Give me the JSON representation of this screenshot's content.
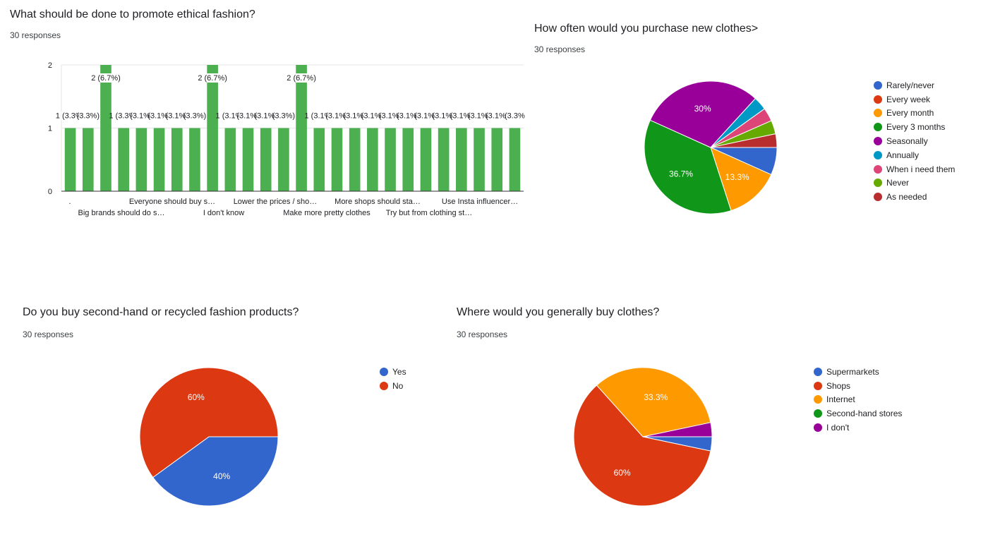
{
  "colors": {
    "blue": "#3366cc",
    "red": "#dc3912",
    "orange": "#ff9900",
    "green": "#109618",
    "purple": "#990099",
    "teal": "#0099c6",
    "pink": "#dd4477",
    "lime": "#66aa00",
    "darkred": "#b82e2e",
    "bar": "#4caf50"
  },
  "chart_data": [
    {
      "type": "bar",
      "title": "What should be done to promote ethical fashion?",
      "subtitle": "30 responses",
      "ylim": [
        0,
        2
      ],
      "yticks": [
        "0",
        "1",
        "2"
      ],
      "values": [
        1,
        1,
        2,
        1,
        1,
        1,
        1,
        1,
        2,
        1,
        1,
        1,
        1,
        2,
        1,
        1,
        1,
        1,
        1,
        1,
        1,
        1,
        1,
        1,
        1,
        1
      ],
      "bar_labels": [
        "1 (3.3%)",
        "(3.3%)",
        "2 (6.7%)",
        "1 (3.3%)",
        "(3.1%)",
        "(3.1%)",
        "(3.1%)",
        "(3.3%)",
        "2 (6.7%)",
        "1 (3.1%)",
        "(3.1%)",
        "(3.1%)",
        "(3.3%)",
        "2 (6.7%)",
        "1 (3.1%)",
        "(3.1%)",
        "(3.1%)",
        "(3.1%)",
        "(3.1%)",
        "(3.1%)",
        "(3.1%)",
        "(3.1%)",
        "(3.1%)",
        "(3.1%)",
        "(3.1%)",
        "(3.3%"
      ],
      "x_labels_row1": [
        ".",
        "Everyone should buy s…",
        "Lower the prices / sho…",
        "More shops should sta…",
        "Use Insta influencer…"
      ],
      "x_labels_row2": [
        "Big brands should do s…",
        "I don't know",
        "Make more pretty clothes",
        "Try but from clothing st…"
      ]
    },
    {
      "type": "pie",
      "title": "How often would you purchase new clothes>",
      "subtitle": "30 responses",
      "legend_position": "right",
      "slices": [
        {
          "label": "Rarely/never",
          "value": 6.7,
          "color": "#3366cc",
          "display": ""
        },
        {
          "label": "Every week",
          "value": 0,
          "color": "#dc3912",
          "display": ""
        },
        {
          "label": "Every month",
          "value": 13.3,
          "color": "#ff9900",
          "display": "13.3%"
        },
        {
          "label": "Every 3 months",
          "value": 36.7,
          "color": "#109618",
          "display": "36.7%"
        },
        {
          "label": "Seasonally",
          "value": 30,
          "color": "#990099",
          "display": "30%"
        },
        {
          "label": "Annually",
          "value": 3.3,
          "color": "#0099c6",
          "display": ""
        },
        {
          "label": "When i need them",
          "value": 3.3,
          "color": "#dd4477",
          "display": ""
        },
        {
          "label": "Never",
          "value": 3.3,
          "color": "#66aa00",
          "display": ""
        },
        {
          "label": "As needed",
          "value": 3.3,
          "color": "#b82e2e",
          "display": ""
        }
      ]
    },
    {
      "type": "pie",
      "title": "Do you buy second-hand or recycled fashion products?",
      "subtitle": "30 responses",
      "legend_position": "right",
      "slices": [
        {
          "label": "Yes",
          "value": 40,
          "color": "#3366cc",
          "display": "40%"
        },
        {
          "label": "No",
          "value": 60,
          "color": "#dc3912",
          "display": "60%"
        }
      ]
    },
    {
      "type": "pie",
      "title": "Where would you generally buy clothes?",
      "subtitle": "30 responses",
      "legend_position": "right",
      "slices": [
        {
          "label": "Supermarkets",
          "value": 3.3,
          "color": "#3366cc",
          "display": ""
        },
        {
          "label": "Shops",
          "value": 60,
          "color": "#dc3912",
          "display": "60%"
        },
        {
          "label": "Internet",
          "value": 33.3,
          "color": "#ff9900",
          "display": "33.3%"
        },
        {
          "label": "Second-hand stores",
          "value": 0,
          "color": "#109618",
          "display": ""
        },
        {
          "label": "I don't",
          "value": 3.3,
          "color": "#990099",
          "display": ""
        }
      ]
    }
  ]
}
